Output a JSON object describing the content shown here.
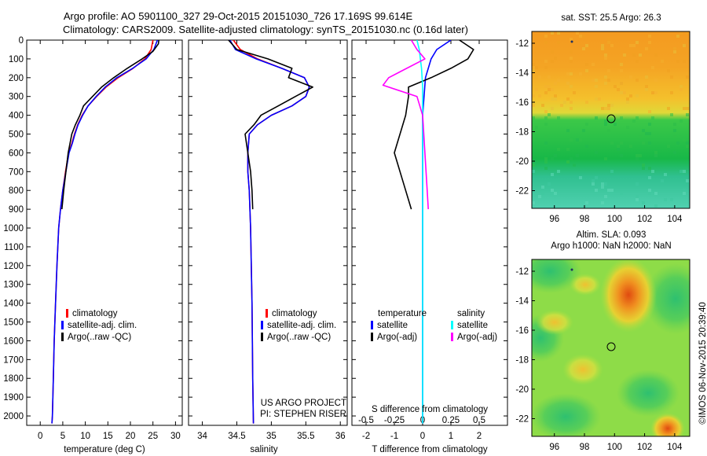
{
  "title_line1": "Argo profile: AO 5901100_327 29-Oct-2015 20151030_726 17.169S 99.614E",
  "title_line2": "Climatology: CARS2009. Satellite-adjusted climatology: synTS_20151030.nc (0.16d later)",
  "colors": {
    "climatology": "#ff0000",
    "satellite": "#0000ff",
    "argo": "#000000",
    "sal_satellite": "#00ffff",
    "sal_argo": "#ff00ff"
  },
  "depth_ticks": [
    "0",
    "100",
    "200",
    "300",
    "400",
    "500",
    "600",
    "700",
    "800",
    "900",
    "1000",
    "1100",
    "1200",
    "1300",
    "1400",
    "1500",
    "1600",
    "1700",
    "1800",
    "1900",
    "2000"
  ],
  "panels": {
    "temperature": {
      "xlabel": "temperature (deg C)",
      "xticks": [
        "0",
        "5",
        "10",
        "15",
        "20",
        "25",
        "30"
      ],
      "legend": [
        "climatology",
        "satellite-adj. clim.",
        "Argo(..raw -QC)"
      ]
    },
    "salinity": {
      "xlabel": "salinity",
      "xticks": [
        "34",
        "34.5",
        "35",
        "35.5",
        "36"
      ],
      "legend": [
        "climatology",
        "satellite-adj. clim.",
        "Argo(..raw -QC)"
      ],
      "note1": "US ARGO PROJECT",
      "note2": "PI: STEPHEN RISER"
    },
    "difference": {
      "xlabel": "T difference from climatology",
      "xticks": [
        "-2",
        "-1",
        "0",
        "1",
        "2"
      ],
      "s_title": "S difference from climatology",
      "s_ticks": [
        "-0.5",
        "-0.25",
        "0",
        "0.25",
        "0.5"
      ],
      "legend_t_head": "temperature",
      "legend_s_head": "salinity",
      "legend_t": [
        "satellite",
        "Argo(-adj)"
      ],
      "legend_s": [
        "satellite",
        "Argo(-adj)"
      ]
    }
  },
  "maps": {
    "sst": {
      "title": "sat. SST: 25.5  Argo: 26.3",
      "xticks": [
        "96",
        "98",
        "100",
        "102",
        "104"
      ],
      "yticks": [
        "-12",
        "-14",
        "-16",
        "-18",
        "-20",
        "-22"
      ]
    },
    "sla": {
      "title1": "Altim. SLA: 0.093",
      "title2": "Argo h1000: NaN h2000: NaN",
      "xticks": [
        "96",
        "98",
        "100",
        "102",
        "104"
      ],
      "yticks": [
        "-12",
        "-14",
        "-16",
        "-18",
        "-20",
        "-22"
      ]
    }
  },
  "footer": "©IMOS 06-Nov-2015 20:39:40",
  "chart_data": [
    {
      "type": "line",
      "xlabel": "temperature (deg C)",
      "ylabel": "",
      "xlim": [
        -3,
        31.5
      ],
      "ylim": [
        2050,
        0
      ],
      "y_axis_reversed": true,
      "series": [
        {
          "name": "climatology",
          "color": "#ff0000",
          "x": [
            25.0,
            24.6,
            23.2,
            20.6,
            17.3,
            14.6,
            12.5,
            10.6,
            9.3,
            8.3,
            7.6,
            7.0,
            6.3,
            5.6,
            5.0,
            4.5,
            4.1,
            3.7,
            3.4,
            3.1,
            2.9,
            2.8,
            2.7,
            2.6
          ],
          "y": [
            0,
            50,
            100,
            150,
            200,
            250,
            300,
            350,
            400,
            450,
            500,
            550,
            600,
            700,
            800,
            900,
            1000,
            1200,
            1400,
            1600,
            1800,
            1900,
            2000,
            2040
          ]
        },
        {
          "name": "satellite-adj. clim.",
          "color": "#0000ff",
          "x": [
            26.0,
            25.2,
            23.5,
            20.5,
            17.0,
            14.4,
            12.4,
            10.6,
            9.4,
            8.4,
            7.7,
            7.1,
            6.4,
            5.7,
            5.0,
            4.5,
            4.1,
            3.7,
            3.4,
            3.1,
            2.9,
            2.8,
            2.7,
            2.6
          ],
          "y": [
            0,
            50,
            100,
            150,
            200,
            250,
            300,
            350,
            400,
            450,
            500,
            550,
            600,
            700,
            800,
            900,
            1000,
            1200,
            1400,
            1600,
            1800,
            1900,
            2000,
            2040
          ]
        },
        {
          "name": "Argo(..raw -QC)",
          "color": "#000000",
          "x": [
            26.3,
            26.2,
            25.0,
            22.6,
            19.3,
            16.3,
            13.6,
            11.6,
            9.6,
            8.8,
            7.8,
            7.0,
            6.2,
            5.7,
            5.2,
            4.8
          ],
          "y": [
            0,
            20,
            60,
            100,
            150,
            200,
            250,
            300,
            350,
            400,
            450,
            500,
            600,
            700,
            800,
            900
          ]
        }
      ]
    },
    {
      "type": "line",
      "xlabel": "salinity",
      "ylabel": "",
      "xlim": [
        33.8,
        36.1
      ],
      "ylim": [
        2050,
        0
      ],
      "y_axis_reversed": true,
      "series": [
        {
          "name": "climatology",
          "color": "#ff0000",
          "x": [
            34.45,
            34.55,
            34.8,
            35.15,
            35.48,
            35.55,
            35.5,
            35.3,
            35.0,
            34.8,
            34.68,
            34.66,
            34.66,
            34.68,
            34.7,
            34.72,
            34.73,
            34.74
          ],
          "y": [
            0,
            50,
            100,
            150,
            200,
            250,
            300,
            350,
            400,
            450,
            500,
            600,
            700,
            800,
            1000,
            1400,
            1800,
            2040
          ]
        },
        {
          "name": "satellite-adj. clim.",
          "color": "#0000ff",
          "x": [
            34.4,
            34.48,
            34.78,
            35.15,
            35.48,
            35.55,
            35.5,
            35.3,
            35.0,
            34.8,
            34.68,
            34.66,
            34.66,
            34.68,
            34.7,
            34.72,
            34.73,
            34.74
          ],
          "y": [
            0,
            50,
            100,
            150,
            200,
            250,
            300,
            350,
            400,
            450,
            500,
            600,
            700,
            800,
            1000,
            1400,
            1800,
            2040
          ]
        },
        {
          "name": "Argo(..raw -QC)",
          "color": "#000000",
          "x": [
            34.38,
            34.5,
            34.95,
            35.3,
            35.25,
            35.6,
            35.35,
            35.1,
            34.85,
            34.75,
            34.62,
            34.66,
            34.7,
            34.72,
            34.73
          ],
          "y": [
            0,
            50,
            100,
            150,
            200,
            250,
            300,
            350,
            400,
            450,
            500,
            600,
            700,
            800,
            900
          ]
        }
      ]
    },
    {
      "type": "line",
      "xlabel": "T difference from climatology",
      "ylabel": "",
      "xlim": [
        -2.5,
        3.0
      ],
      "ylim": [
        2050,
        0
      ],
      "y_axis_reversed": true,
      "s_axis": {
        "label": "S difference from climatology",
        "ticks": [
          -0.5,
          -0.25,
          0,
          0.25,
          0.5
        ]
      },
      "series": [
        {
          "name": "temperature satellite",
          "color": "#0000ff",
          "x": [
            1.0,
            0.5,
            0.3,
            0.2,
            0.1,
            0.05,
            0.0,
            0.0,
            0.0,
            0.0,
            0.0,
            0.0
          ],
          "y": [
            0,
            50,
            100,
            150,
            200,
            300,
            400,
            600,
            800,
            1200,
            1600,
            2040
          ]
        },
        {
          "name": "temperature Argo(-adj)",
          "color": "#000000",
          "x": [
            1.3,
            1.8,
            1.6,
            1.0,
            0.3,
            -0.5,
            -0.5,
            -0.6,
            -1.0,
            -0.8,
            -0.6,
            -0.4
          ],
          "y": [
            0,
            50,
            100,
            150,
            200,
            250,
            300,
            400,
            600,
            700,
            800,
            900
          ]
        },
        {
          "name": "salinity satellite",
          "color": "#00ffff",
          "x": [
            -0.05,
            -0.03,
            -0.02,
            -0.01,
            0.0,
            0.0,
            0.0,
            0.0,
            0.0
          ],
          "y": [
            0,
            50,
            100,
            150,
            250,
            400,
            800,
            1200,
            2040
          ]
        },
        {
          "name": "salinity Argo(-adj)",
          "color": "#ff00ff",
          "x": [
            -0.1,
            -0.05,
            0.02,
            -0.3,
            -0.35,
            -0.05,
            0.0,
            0.02,
            0.04,
            0.05
          ],
          "y": [
            0,
            50,
            100,
            200,
            240,
            300,
            400,
            600,
            800,
            900
          ]
        }
      ]
    },
    {
      "type": "heatmap",
      "title": "sat. SST: 25.5  Argo: 26.3",
      "xlim": [
        94.5,
        105
      ],
      "ylim": [
        -23.2,
        -11.2
      ],
      "xticks": [
        96,
        98,
        100,
        102,
        104
      ],
      "yticks": [
        -12,
        -14,
        -16,
        -18,
        -20,
        -22
      ],
      "argo_position": {
        "lon": 99.614,
        "lat": -17.169
      }
    },
    {
      "type": "heatmap",
      "title": "Altim. SLA: 0.093",
      "subtitle": "Argo h1000: NaN h2000: NaN",
      "xlim": [
        94.5,
        105
      ],
      "ylim": [
        -23.2,
        -11.2
      ],
      "xticks": [
        96,
        98,
        100,
        102,
        104
      ],
      "yticks": [
        -12,
        -14,
        -16,
        -18,
        -20,
        -22
      ],
      "argo_position": {
        "lon": 99.614,
        "lat": -17.169
      }
    }
  ]
}
